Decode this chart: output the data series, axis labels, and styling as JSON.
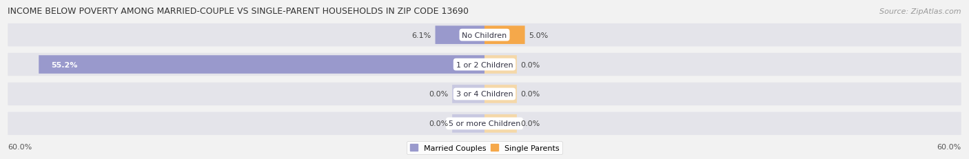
{
  "title": "INCOME BELOW POVERTY AMONG MARRIED-COUPLE VS SINGLE-PARENT HOUSEHOLDS IN ZIP CODE 13690",
  "source": "Source: ZipAtlas.com",
  "categories": [
    "No Children",
    "1 or 2 Children",
    "3 or 4 Children",
    "5 or more Children"
  ],
  "married_values": [
    6.1,
    55.2,
    0.0,
    0.0
  ],
  "single_values": [
    5.0,
    0.0,
    0.0,
    0.0
  ],
  "married_color": "#9999cc",
  "single_color": "#f5a84a",
  "married_label": "Married Couples",
  "single_label": "Single Parents",
  "married_zero_color": "#c8c8e0",
  "single_zero_color": "#f5d8a8",
  "axis_max": 60.0,
  "axis_label_left": "60.0%",
  "axis_label_right": "60.0%",
  "bg_color": "#f2f2f2",
  "bar_bg_color": "#e4e4ea",
  "bar_shadow_color": "#d0d0d8",
  "title_fontsize": 9,
  "source_fontsize": 8,
  "label_fontsize": 8,
  "category_fontsize": 8
}
